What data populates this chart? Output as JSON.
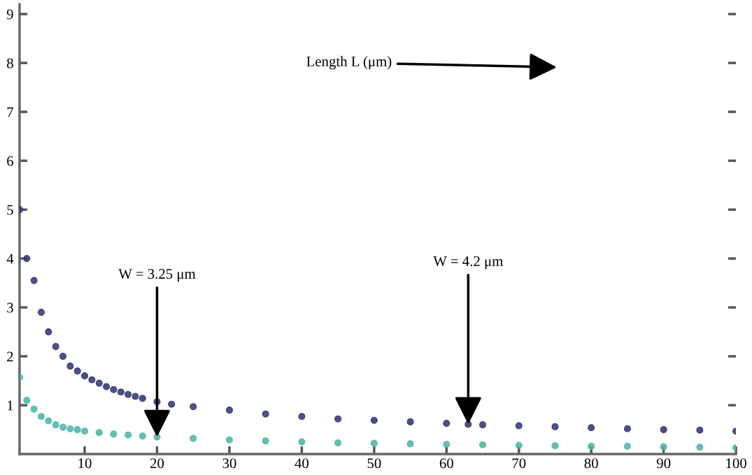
{
  "chart_data": {
    "type": "scatter",
    "marker": "circle",
    "grid": false,
    "legend": false,
    "xlim": [
      1,
      100
    ],
    "ylim": [
      0,
      9.2
    ],
    "xticks": [
      10,
      20,
      30,
      40,
      50,
      60,
      70,
      80,
      90,
      100
    ],
    "yticks": [
      1,
      2,
      3,
      4,
      5,
      6,
      7,
      8,
      9
    ],
    "series": [
      {
        "color": "#2e3170",
        "x": [
          1,
          2,
          3,
          4,
          5,
          6,
          7,
          8,
          9,
          10,
          11,
          12,
          13,
          14,
          15,
          16,
          17,
          18,
          20,
          22,
          25,
          30,
          35,
          40,
          45,
          50,
          55,
          60,
          63,
          65,
          70,
          75,
          80,
          85,
          90,
          95,
          100
        ],
        "values": [
          5.0,
          4.0,
          3.55,
          2.9,
          2.5,
          2.2,
          2.0,
          1.8,
          1.7,
          1.6,
          1.52,
          1.45,
          1.38,
          1.32,
          1.27,
          1.22,
          1.18,
          1.14,
          1.07,
          1.02,
          0.97,
          0.9,
          0.82,
          0.77,
          0.72,
          0.69,
          0.66,
          0.63,
          0.61,
          0.6,
          0.58,
          0.56,
          0.54,
          0.52,
          0.5,
          0.49,
          0.47
        ]
      },
      {
        "color": "#4bb3a6",
        "x": [
          1,
          2,
          3,
          4,
          5,
          6,
          7,
          8,
          9,
          10,
          12,
          14,
          16,
          18,
          20,
          25,
          30,
          35,
          40,
          45,
          50,
          55,
          60,
          65,
          70,
          75,
          80,
          85,
          90,
          95,
          100
        ],
        "values": [
          1.57,
          1.1,
          0.92,
          0.77,
          0.68,
          0.6,
          0.55,
          0.52,
          0.5,
          0.47,
          0.44,
          0.41,
          0.39,
          0.37,
          0.35,
          0.32,
          0.29,
          0.27,
          0.25,
          0.23,
          0.22,
          0.21,
          0.2,
          0.19,
          0.18,
          0.17,
          0.16,
          0.16,
          0.15,
          0.14,
          0.13
        ]
      }
    ],
    "annotations": [
      "Length L (μm)",
      {
        "text": "W = 3.25 μm",
        "x": 20,
        "y": 0.35
      },
      {
        "text": "W = 4.2 μm",
        "x": 63,
        "y": 0.61
      }
    ]
  }
}
